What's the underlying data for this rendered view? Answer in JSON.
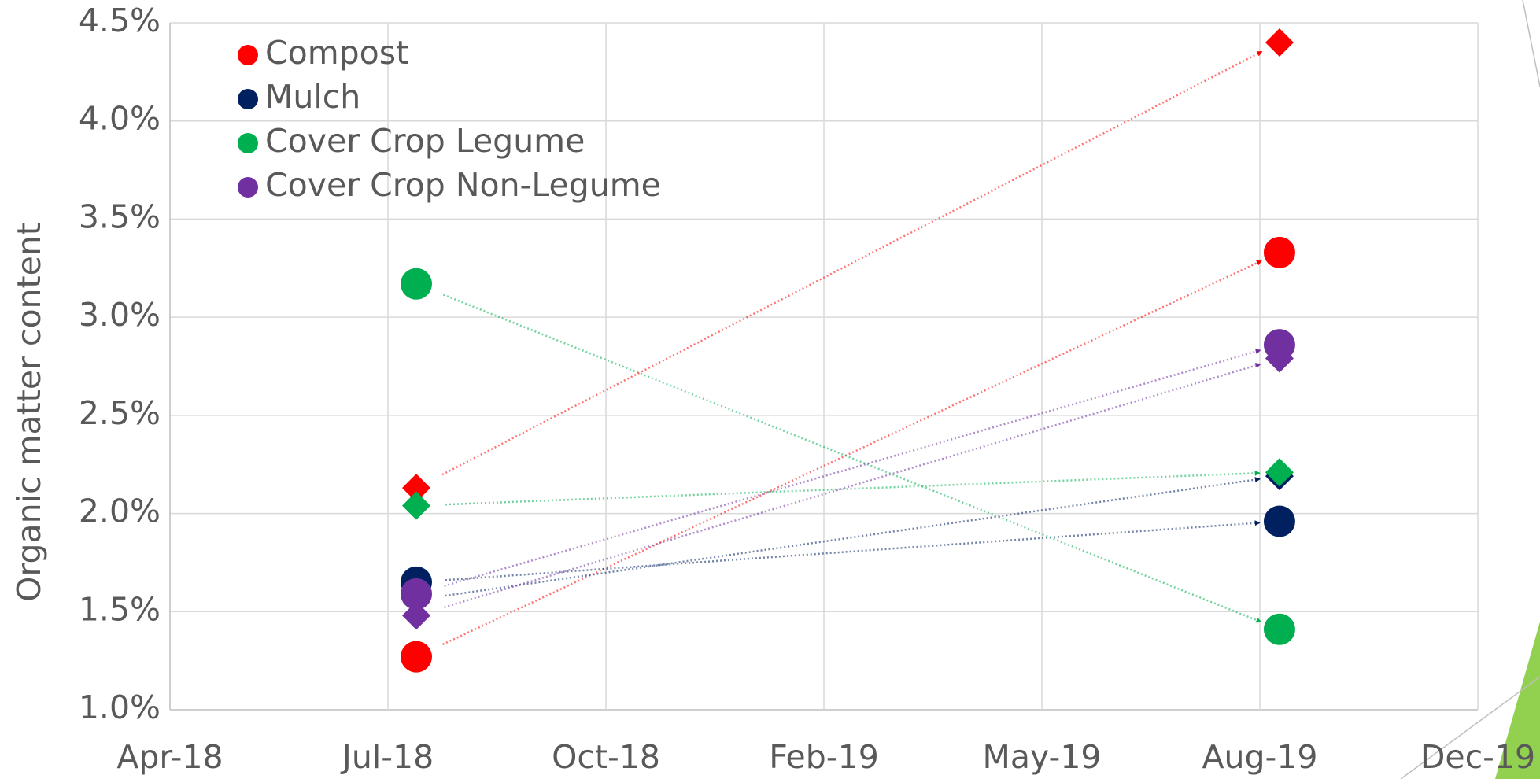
{
  "chart_data": {
    "type": "scatter",
    "y_label": "Organic matter content",
    "xlim": [
      43200,
      43800
    ],
    "xticks": [
      {
        "value": 43200,
        "label": "Apr-18"
      },
      {
        "value": 43300,
        "label": "Jul-18"
      },
      {
        "value": 43400,
        "label": "Oct-18"
      },
      {
        "value": 43500,
        "label": "Feb-19"
      },
      {
        "value": 43600,
        "label": "May-19"
      },
      {
        "value": 43700,
        "label": "Aug-19"
      },
      {
        "value": 43800,
        "label": "Dec-19"
      }
    ],
    "ylim": [
      1.0,
      4.5
    ],
    "yticks": [
      {
        "value": 1.0,
        "label": "1.0%"
      },
      {
        "value": 1.5,
        "label": "1.5%"
      },
      {
        "value": 2.0,
        "label": "2.0%"
      },
      {
        "value": 2.5,
        "label": "2.5%"
      },
      {
        "value": 3.0,
        "label": "3.0%"
      },
      {
        "value": 3.5,
        "label": "3.5%"
      },
      {
        "value": 4.0,
        "label": "4.0%"
      },
      {
        "value": 4.5,
        "label": "4.5%"
      }
    ],
    "grid": true,
    "legend": "top-left",
    "series": [
      {
        "name": "Compost",
        "color": "#ff0000",
        "marker": "circle",
        "x": [
          43313,
          43709
        ],
        "values": [
          1.27,
          3.33
        ]
      },
      {
        "name": "Mulch",
        "color": "#002060",
        "marker": "circle",
        "x": [
          43313,
          43709
        ],
        "values": [
          1.65,
          1.96
        ]
      },
      {
        "name": "Cover Crop Legume",
        "color": "#00b050",
        "marker": "circle",
        "x": [
          43313,
          43709
        ],
        "values": [
          3.17,
          1.41
        ]
      },
      {
        "name": "Cover Crop Non-Legume",
        "color": "#7030a0",
        "marker": "circle",
        "x": [
          43313,
          43709
        ],
        "values": [
          1.59,
          2.86
        ]
      },
      {
        "color": "#ff0000",
        "marker": "diamond",
        "x": [
          43313,
          43709
        ],
        "values": [
          2.13,
          4.4
        ]
      },
      {
        "color": "#002060",
        "marker": "diamond",
        "x": [
          43313,
          43709
        ],
        "values": [
          1.56,
          2.19
        ]
      },
      {
        "color": "#00b050",
        "marker": "diamond",
        "x": [
          43313,
          43709
        ],
        "values": [
          2.04,
          2.21
        ]
      },
      {
        "color": "#7030a0",
        "marker": "diamond",
        "x": [
          43313,
          43709
        ],
        "values": [
          1.48,
          2.79
        ]
      }
    ]
  }
}
